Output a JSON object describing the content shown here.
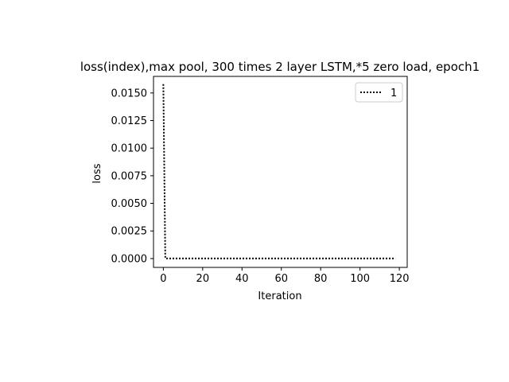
{
  "chart_data": {
    "type": "line",
    "title": "loss(index),max pool, 300 times 2 layer LSTM,*5 zero load, epoch1",
    "xlabel": "Iteration",
    "ylabel": "loss",
    "xlim": [
      -5,
      124
    ],
    "ylim": [
      -0.0008,
      0.0165
    ],
    "xticks": [
      0,
      20,
      40,
      60,
      80,
      100,
      120
    ],
    "xtick_labels": [
      "0",
      "20",
      "40",
      "60",
      "80",
      "100",
      "120"
    ],
    "yticks": [
      0.0,
      0.0025,
      0.005,
      0.0075,
      0.01,
      0.0125,
      0.015
    ],
    "ytick_labels": [
      "0.0000",
      "0.0025",
      "0.0050",
      "0.0075",
      "0.0100",
      "0.0125",
      "0.0150"
    ],
    "grid": false,
    "legend_position": "top-right",
    "series": [
      {
        "name": "1",
        "color": "#000000",
        "line_style": "dotted",
        "x": [
          0,
          1,
          2,
          3,
          4,
          5,
          10,
          20,
          30,
          40,
          50,
          60,
          70,
          80,
          90,
          100,
          110,
          118
        ],
        "y": [
          0.0158,
          3e-05,
          1e-05,
          1e-05,
          1e-05,
          1e-05,
          1e-05,
          1e-05,
          1e-05,
          1e-05,
          1e-05,
          1e-05,
          1e-05,
          1e-05,
          1e-05,
          1e-05,
          1e-05,
          1e-05
        ]
      }
    ]
  }
}
